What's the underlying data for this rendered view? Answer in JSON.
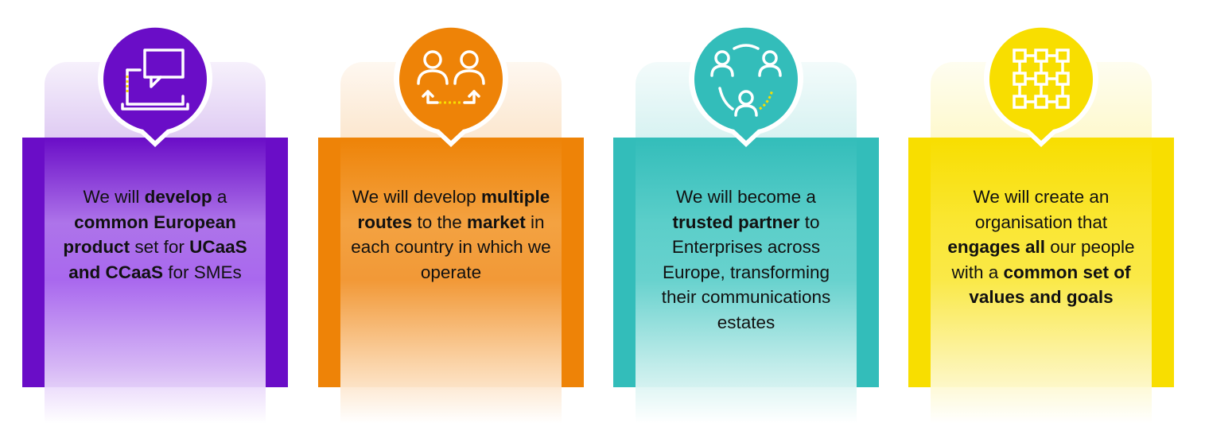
{
  "pillars": [
    {
      "color": "#6A0DC7",
      "icon": "laptop-chat-icon",
      "text": [
        {
          "t": "We will ",
          "b": false
        },
        {
          "t": "develop",
          "b": true
        },
        {
          "t": " a ",
          "b": false
        },
        {
          "t": "common European product",
          "b": true
        },
        {
          "t": " set for ",
          "b": false
        },
        {
          "t": "UCaaS and CCaaS",
          "b": true
        },
        {
          "t": " for SMEs",
          "b": false
        }
      ]
    },
    {
      "color": "#EE8307",
      "icon": "people-exchange-icon",
      "text": [
        {
          "t": "We will develop ",
          "b": false
        },
        {
          "t": "multiple routes",
          "b": true
        },
        {
          "t": " to the ",
          "b": false
        },
        {
          "t": "market",
          "b": true
        },
        {
          "t": " in each country in which we operate",
          "b": false
        }
      ]
    },
    {
      "color": "#33BDBA",
      "icon": "people-network-icon",
      "text": [
        {
          "t": "We will become a ",
          "b": false
        },
        {
          "t": "trusted partner",
          "b": true
        },
        {
          "t": " to Enterprises across Europe, transforming their communications estates",
          "b": false
        }
      ]
    },
    {
      "color": "#F8DE00",
      "icon": "network-grid-icon",
      "text": [
        {
          "t": "We will create an organisation that ",
          "b": false
        },
        {
          "t": "engages all",
          "b": true
        },
        {
          "t": " our people with a ",
          "b": false
        },
        {
          "t": "common set of values and goals",
          "b": true
        }
      ]
    }
  ]
}
